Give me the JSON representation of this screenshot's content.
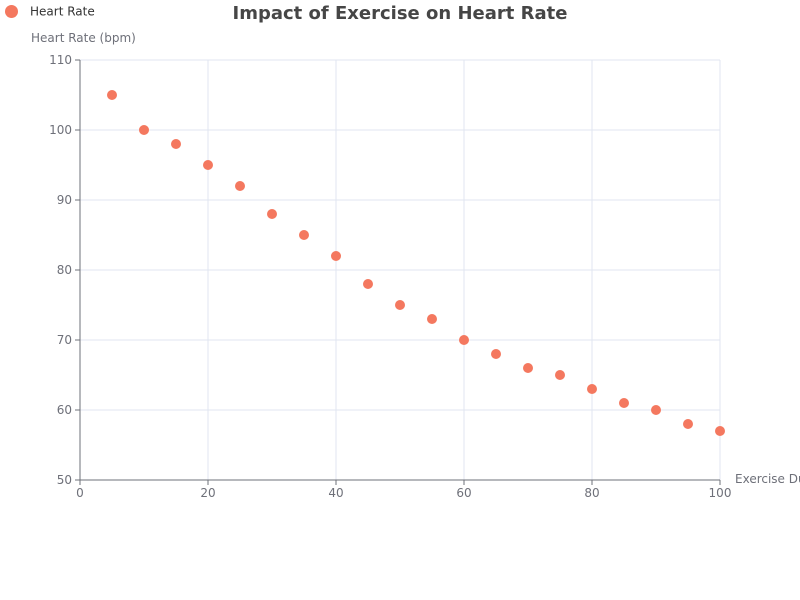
{
  "chart_data": {
    "type": "scatter",
    "title": "Impact of Exercise on Heart Rate",
    "xlabel": "Exercise Duration (minutes)",
    "ylabel": "Heart Rate (bpm)",
    "xlim": [
      0,
      100
    ],
    "ylim": [
      50,
      110
    ],
    "x_ticks": [
      0,
      20,
      40,
      60,
      80,
      100
    ],
    "y_ticks": [
      50,
      60,
      70,
      80,
      90,
      100,
      110
    ],
    "grid": true,
    "legend_position": "top-left",
    "series": [
      {
        "name": "Heart Rate",
        "color": "#f4785f",
        "points": [
          [
            5,
            105
          ],
          [
            10,
            100
          ],
          [
            15,
            98
          ],
          [
            20,
            95
          ],
          [
            25,
            92
          ],
          [
            30,
            88
          ],
          [
            35,
            85
          ],
          [
            40,
            82
          ],
          [
            45,
            78
          ],
          [
            50,
            75
          ],
          [
            55,
            73
          ],
          [
            60,
            70
          ],
          [
            65,
            68
          ],
          [
            70,
            66
          ],
          [
            75,
            65
          ],
          [
            80,
            63
          ],
          [
            85,
            61
          ],
          [
            90,
            60
          ],
          [
            95,
            58
          ],
          [
            100,
            57
          ]
        ]
      }
    ]
  }
}
